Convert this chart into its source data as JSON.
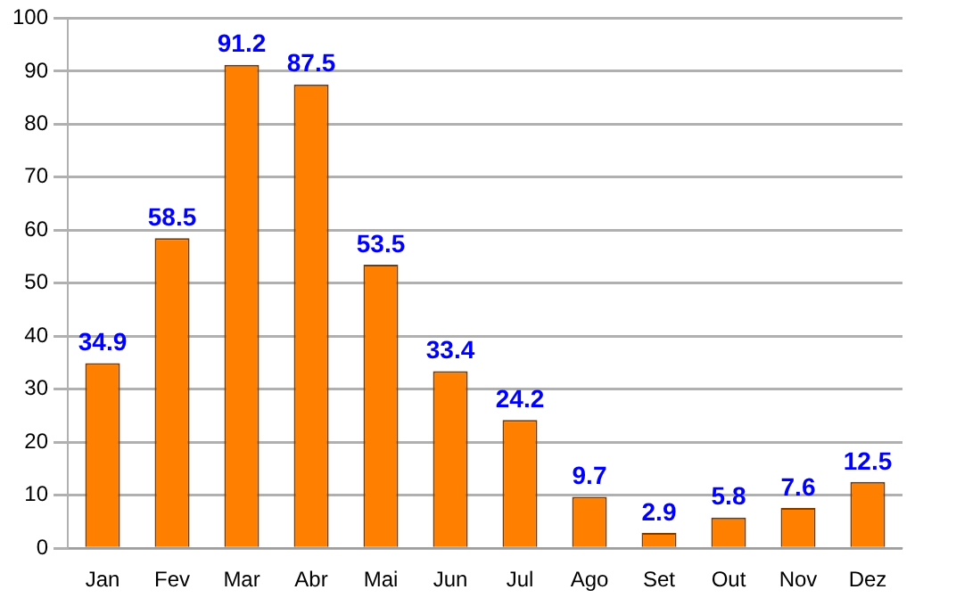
{
  "chart_data": {
    "type": "bar",
    "categories": [
      "Jan",
      "Fev",
      "Mar",
      "Abr",
      "Mai",
      "Jun",
      "Jul",
      "Ago",
      "Set",
      "Out",
      "Nov",
      "Dez"
    ],
    "values": [
      34.9,
      58.5,
      91.2,
      87.5,
      53.5,
      33.4,
      24.2,
      9.7,
      2.9,
      5.8,
      7.6,
      12.5
    ],
    "color": "#ff8000",
    "ylim": [
      0,
      100
    ],
    "yticks": [
      0,
      10,
      20,
      30,
      40,
      50,
      60,
      70,
      80,
      90,
      100
    ],
    "grid": "y",
    "data_labels": true,
    "legend": false
  }
}
